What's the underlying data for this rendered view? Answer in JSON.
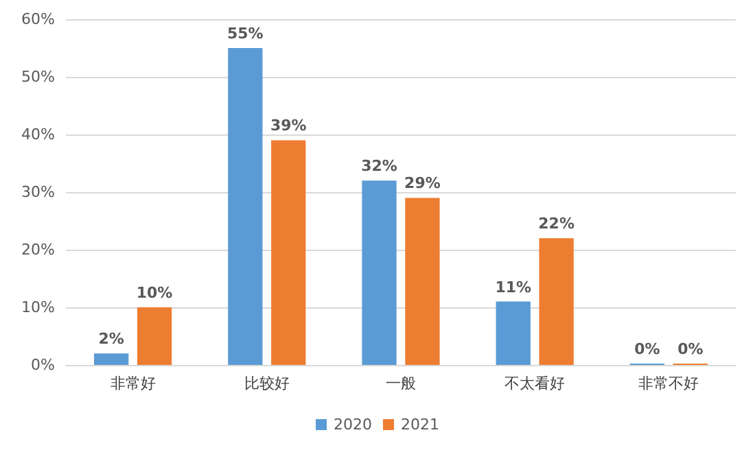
{
  "chart_data": {
    "type": "bar",
    "categories": [
      "非常好",
      "比较好",
      "一般",
      "不太看好",
      "非常不好"
    ],
    "series": [
      {
        "name": "2020",
        "color": "#5b9bd5",
        "values": [
          2,
          55,
          32,
          11,
          0
        ],
        "value_labels": [
          "2%",
          "55%",
          "32%",
          "11%",
          "0%"
        ]
      },
      {
        "name": "2021",
        "color": "#ed7d31",
        "values": [
          10,
          39,
          29,
          22,
          0
        ],
        "value_labels": [
          "10%",
          "39%",
          "29%",
          "22%",
          "0%"
        ]
      }
    ],
    "ylim": [
      0,
      60
    ],
    "yticks": [
      {
        "value": 0,
        "label": "0%"
      },
      {
        "value": 10,
        "label": "10%"
      },
      {
        "value": 20,
        "label": "20%"
      },
      {
        "value": 30,
        "label": "30%"
      },
      {
        "value": 40,
        "label": "40%"
      },
      {
        "value": 50,
        "label": "50%"
      },
      {
        "value": 60,
        "label": "60%"
      }
    ],
    "grid": "y",
    "legend": "bottom"
  }
}
